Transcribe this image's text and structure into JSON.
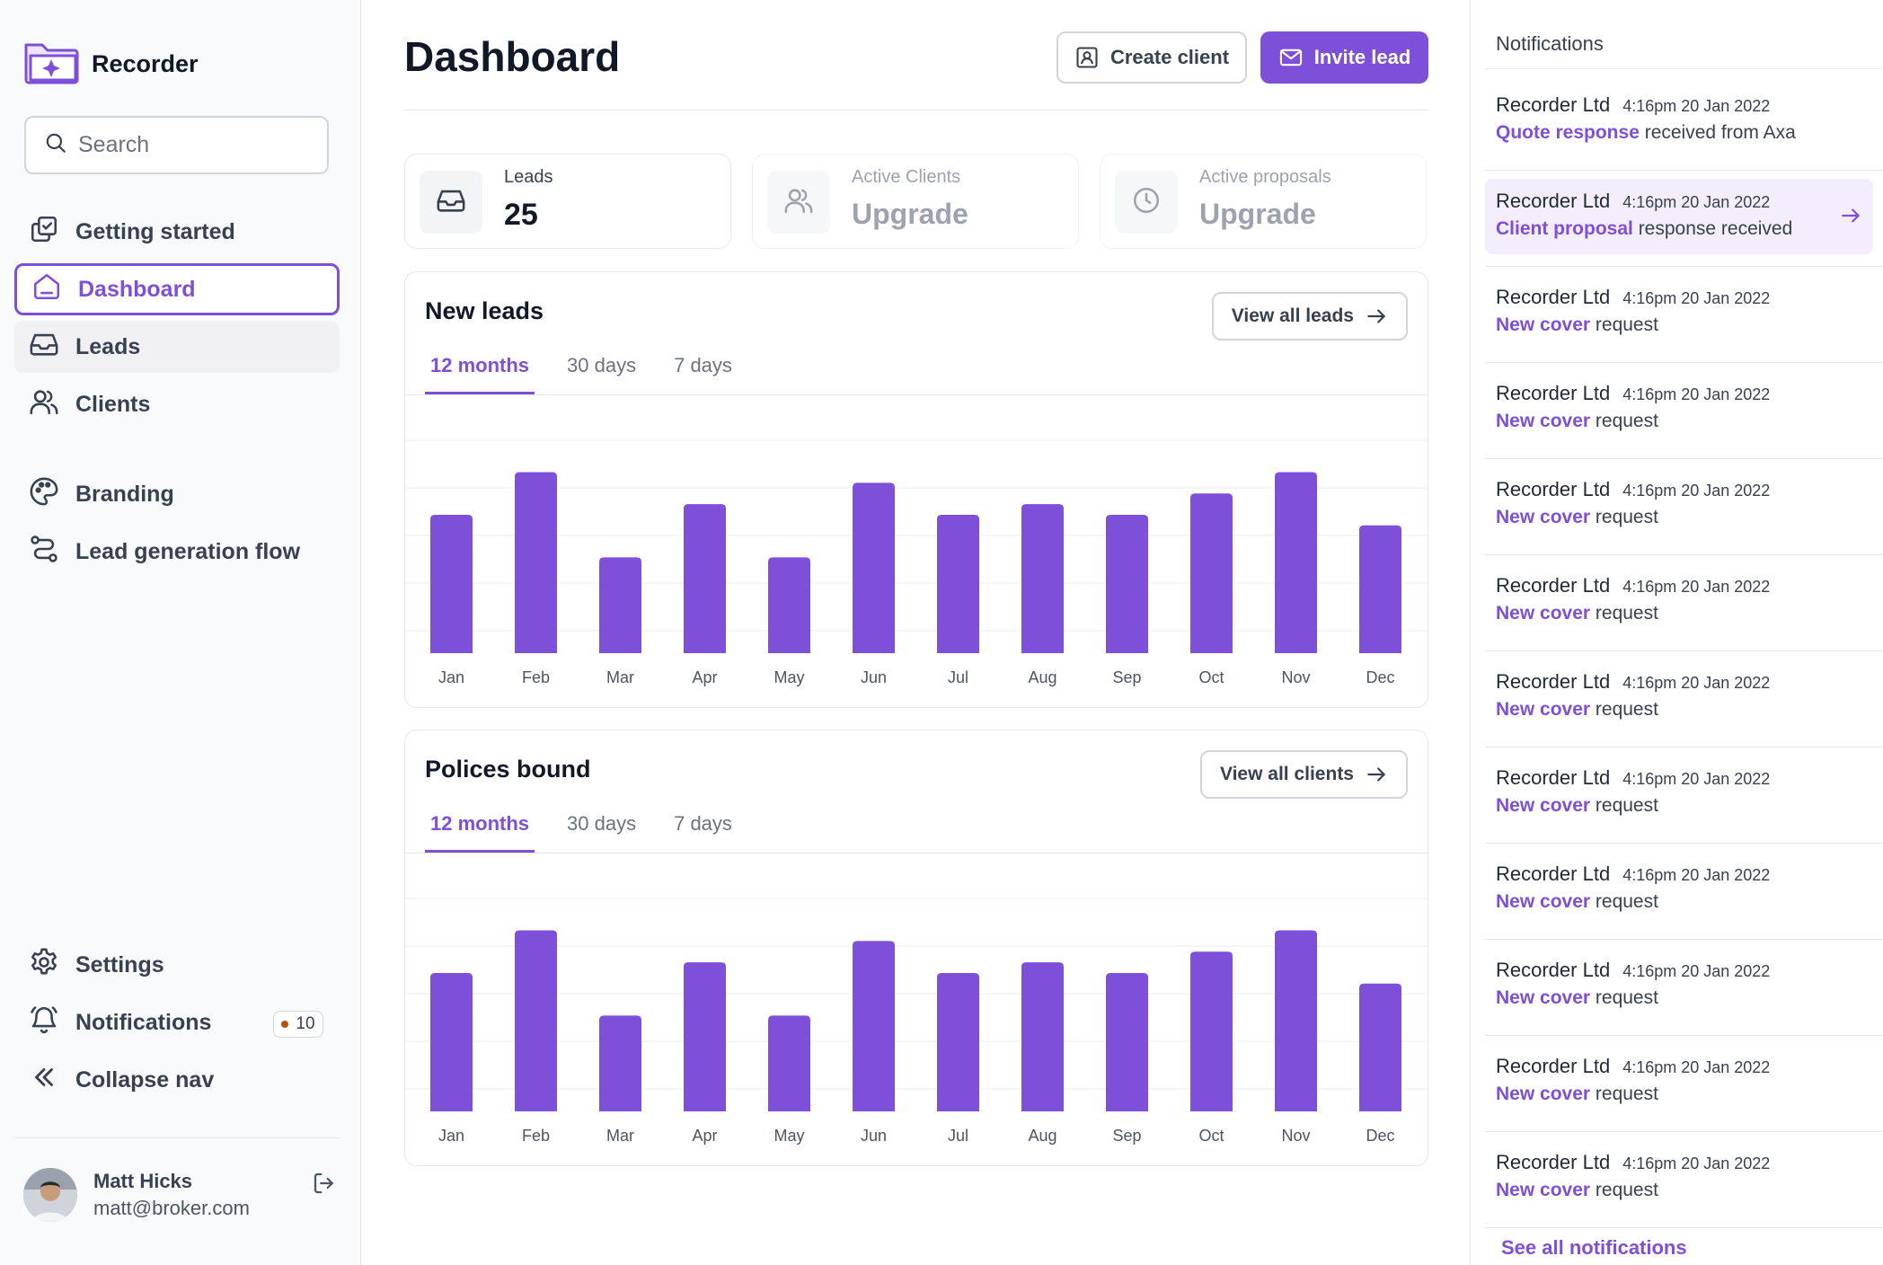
{
  "app": {
    "name": "Recorder"
  },
  "search": {
    "placeholder": "Search"
  },
  "nav": {
    "getting_started": "Getting started",
    "dashboard": "Dashboard",
    "leads": "Leads",
    "clients": "Clients",
    "branding": "Branding",
    "lead_generation_flow": "Lead generation flow",
    "settings": "Settings",
    "notifications": "Notifications",
    "notifications_count": "10",
    "collapse": "Collapse nav"
  },
  "user": {
    "name": "Matt Hicks",
    "email": "matt@broker.com"
  },
  "page": {
    "title": "Dashboard"
  },
  "header": {
    "create_client": "Create client",
    "invite_lead": "Invite lead"
  },
  "stats": [
    {
      "label": "Leads",
      "value": "25"
    },
    {
      "label": "Active Clients",
      "value": "Upgrade"
    },
    {
      "label": "Active proposals",
      "value": "Upgrade"
    }
  ],
  "cards": {
    "new_leads": {
      "title": "New leads",
      "button": "View all leads"
    },
    "policies": {
      "title": "Polices bound",
      "button": "View all clients"
    },
    "tabs": [
      "12 months",
      "30 days",
      "7 days"
    ]
  },
  "notifications": {
    "heading": "Notifications",
    "items": [
      {
        "sender": "Recorder Ltd",
        "time": "4:16pm 20 Jan 2022",
        "highlight": "Quote response",
        "rest": " received from Axa"
      },
      {
        "sender": "Recorder Ltd",
        "time": "4:16pm 20 Jan 2022",
        "highlight": "Client proposal",
        "rest": " response received"
      },
      {
        "sender": "Recorder Ltd",
        "time": "4:16pm 20 Jan 2022",
        "highlight": "New cover",
        "rest": " request"
      },
      {
        "sender": "Recorder Ltd",
        "time": "4:16pm 20 Jan 2022",
        "highlight": "New cover",
        "rest": " request"
      },
      {
        "sender": "Recorder Ltd",
        "time": "4:16pm 20 Jan 2022",
        "highlight": "New cover",
        "rest": " request"
      },
      {
        "sender": "Recorder Ltd",
        "time": "4:16pm 20 Jan 2022",
        "highlight": "New cover",
        "rest": " request"
      },
      {
        "sender": "Recorder Ltd",
        "time": "4:16pm 20 Jan 2022",
        "highlight": "New cover",
        "rest": " request"
      },
      {
        "sender": "Recorder Ltd",
        "time": "4:16pm 20 Jan 2022",
        "highlight": "New cover",
        "rest": " request"
      },
      {
        "sender": "Recorder Ltd",
        "time": "4:16pm 20 Jan 2022",
        "highlight": "New cover",
        "rest": " request"
      },
      {
        "sender": "Recorder Ltd",
        "time": "4:16pm 20 Jan 2022",
        "highlight": "New cover",
        "rest": " request"
      },
      {
        "sender": "Recorder Ltd",
        "time": "4:16pm 20 Jan 2022",
        "highlight": "New cover",
        "rest": " request"
      },
      {
        "sender": "Recorder Ltd",
        "time": "4:16pm 20 Jan 2022",
        "highlight": "New cover",
        "rest": " request"
      }
    ],
    "see_all": "See all notifications"
  },
  "colors": {
    "accent": "#7e4fd8"
  },
  "chart_data": [
    {
      "type": "bar",
      "title": "New leads",
      "categories": [
        "Jan",
        "Feb",
        "Mar",
        "Apr",
        "May",
        "Jun",
        "Jul",
        "Aug",
        "Sep",
        "Oct",
        "Nov",
        "Dec"
      ],
      "values": [
        65,
        85,
        45,
        70,
        45,
        80,
        65,
        70,
        65,
        75,
        85,
        60
      ],
      "ylim": [
        0,
        100
      ],
      "grid": true
    },
    {
      "type": "bar",
      "title": "Polices bound",
      "categories": [
        "Jan",
        "Feb",
        "Mar",
        "Apr",
        "May",
        "Jun",
        "Jul",
        "Aug",
        "Sep",
        "Oct",
        "Nov",
        "Dec"
      ],
      "values": [
        65,
        85,
        45,
        70,
        45,
        80,
        65,
        70,
        65,
        75,
        85,
        60
      ],
      "ylim": [
        0,
        100
      ],
      "grid": true
    }
  ]
}
